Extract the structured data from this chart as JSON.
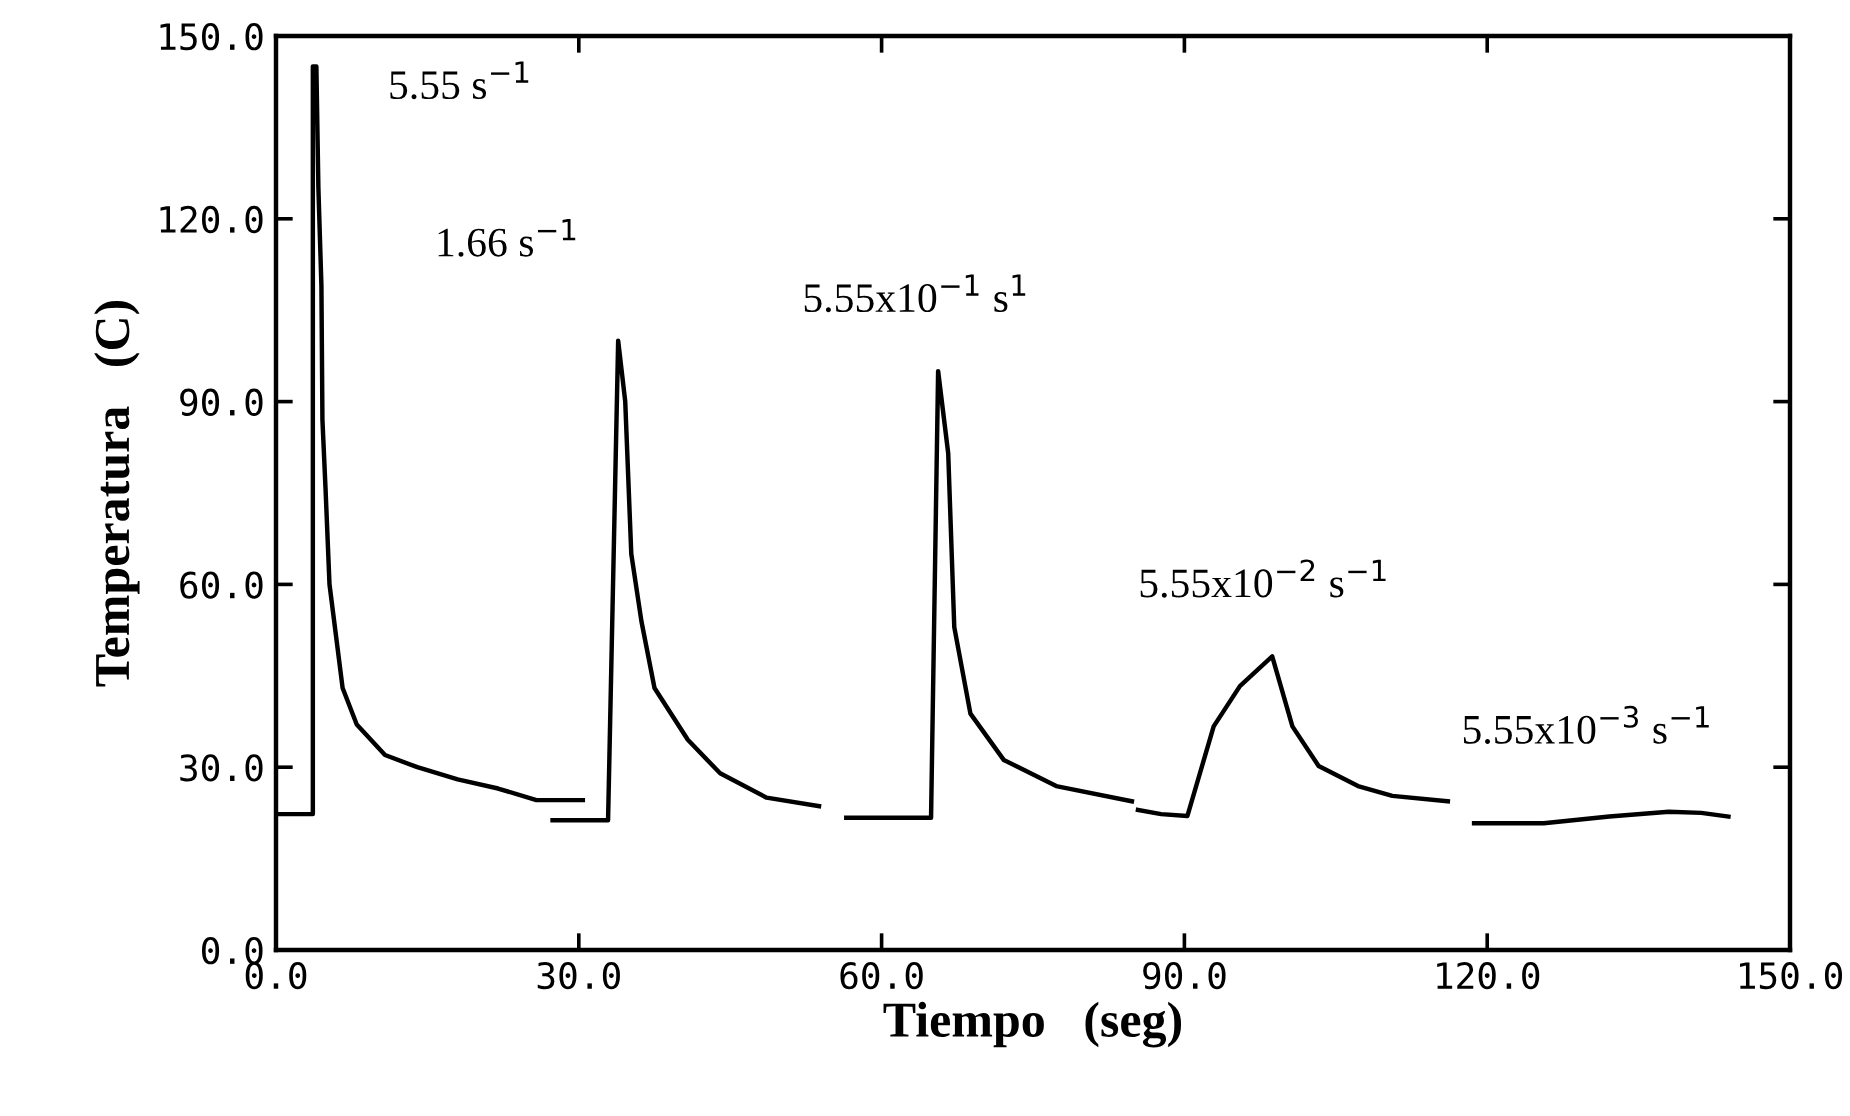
{
  "chart_data": {
    "type": "line",
    "xlabel": "Tiempo   (seg)",
    "ylabel": "Temperatura   (C)",
    "xlim": [
      0,
      150
    ],
    "ylim": [
      0,
      150
    ],
    "xticks": [
      {
        "value": 0,
        "label": "0.0"
      },
      {
        "value": 30,
        "label": "30.0"
      },
      {
        "value": 60,
        "label": "60.0"
      },
      {
        "value": 90,
        "label": "90.0"
      },
      {
        "value": 120,
        "label": "120.0"
      },
      {
        "value": 150,
        "label": "150.0"
      }
    ],
    "yticks": [
      {
        "value": 0,
        "label": "0.0"
      },
      {
        "value": 30,
        "label": "30.0"
      },
      {
        "value": 60,
        "label": "60.0"
      },
      {
        "value": 90,
        "label": "90.0"
      },
      {
        "value": 120,
        "label": "120.0"
      },
      {
        "value": 150,
        "label": "150.0"
      }
    ],
    "grid": false,
    "marker": "none",
    "line_style": "solid",
    "series": [
      {
        "color": "#000000",
        "x": [
          0,
          3.65,
          3.65,
          4.0,
          4.2,
          4.5,
          4.6,
          4.9,
          5.3,
          6.6,
          8,
          10.8,
          14,
          18,
          22,
          25.8,
          30.4
        ],
        "values": [
          22.3,
          22.3,
          145,
          145,
          125,
          109,
          87,
          76,
          60,
          43,
          37,
          32,
          30,
          28,
          26.5,
          24.6,
          24.6
        ]
      },
      {
        "color": "#000000",
        "x": [
          27.4,
          32.9,
          33.9,
          34.6,
          35.2,
          36.2,
          37.5,
          40.8,
          44,
          48.6,
          53.8
        ],
        "values": [
          21.3,
          21.3,
          100,
          90,
          65,
          54,
          43,
          34.5,
          29,
          25,
          23.6
        ]
      },
      {
        "color": "#000000",
        "x": [
          56.5,
          64.9,
          65.6,
          66.6,
          67.2,
          68.8,
          72.1,
          77.3,
          84.8
        ],
        "values": [
          21.7,
          21.7,
          95,
          81.5,
          53,
          38.8,
          31.2,
          26.9,
          24.4
        ]
      },
      {
        "color": "#000000",
        "x": [
          85.4,
          87.7,
          90.3,
          92.9,
          95.5,
          98.7,
          100.7,
          103.3,
          107.2,
          110.6,
          116.1
        ],
        "values": [
          23,
          22.3,
          22,
          36.7,
          43.3,
          48.2,
          36.7,
          30.2,
          26.9,
          25.3,
          24.4
        ]
      },
      {
        "color": "#000000",
        "x": [
          118.7,
          125.6,
          132.1,
          138,
          141.2,
          143.9
        ],
        "values": [
          20.8,
          20.8,
          21.9,
          22.7,
          22.5,
          21.9
        ]
      }
    ],
    "annotations": [
      {
        "text": "5.55 s$^{−1}$",
        "x": 3.65,
        "y": 145
      },
      {
        "text": "1.66 s$^{−1}$",
        "x": 33.9,
        "y": 100
      },
      {
        "text": "5.55x10$^{−1}$ s$^{1}$",
        "x": 65.6,
        "y": 95
      },
      {
        "text": "5.55x10$^{−2}$ s$^{−1}$",
        "x": 98.7,
        "y": 48.2
      },
      {
        "text": "5.55x10$^{−3}$ s$^{−1}$",
        "x": 132.1,
        "y": 21.9
      }
    ]
  }
}
